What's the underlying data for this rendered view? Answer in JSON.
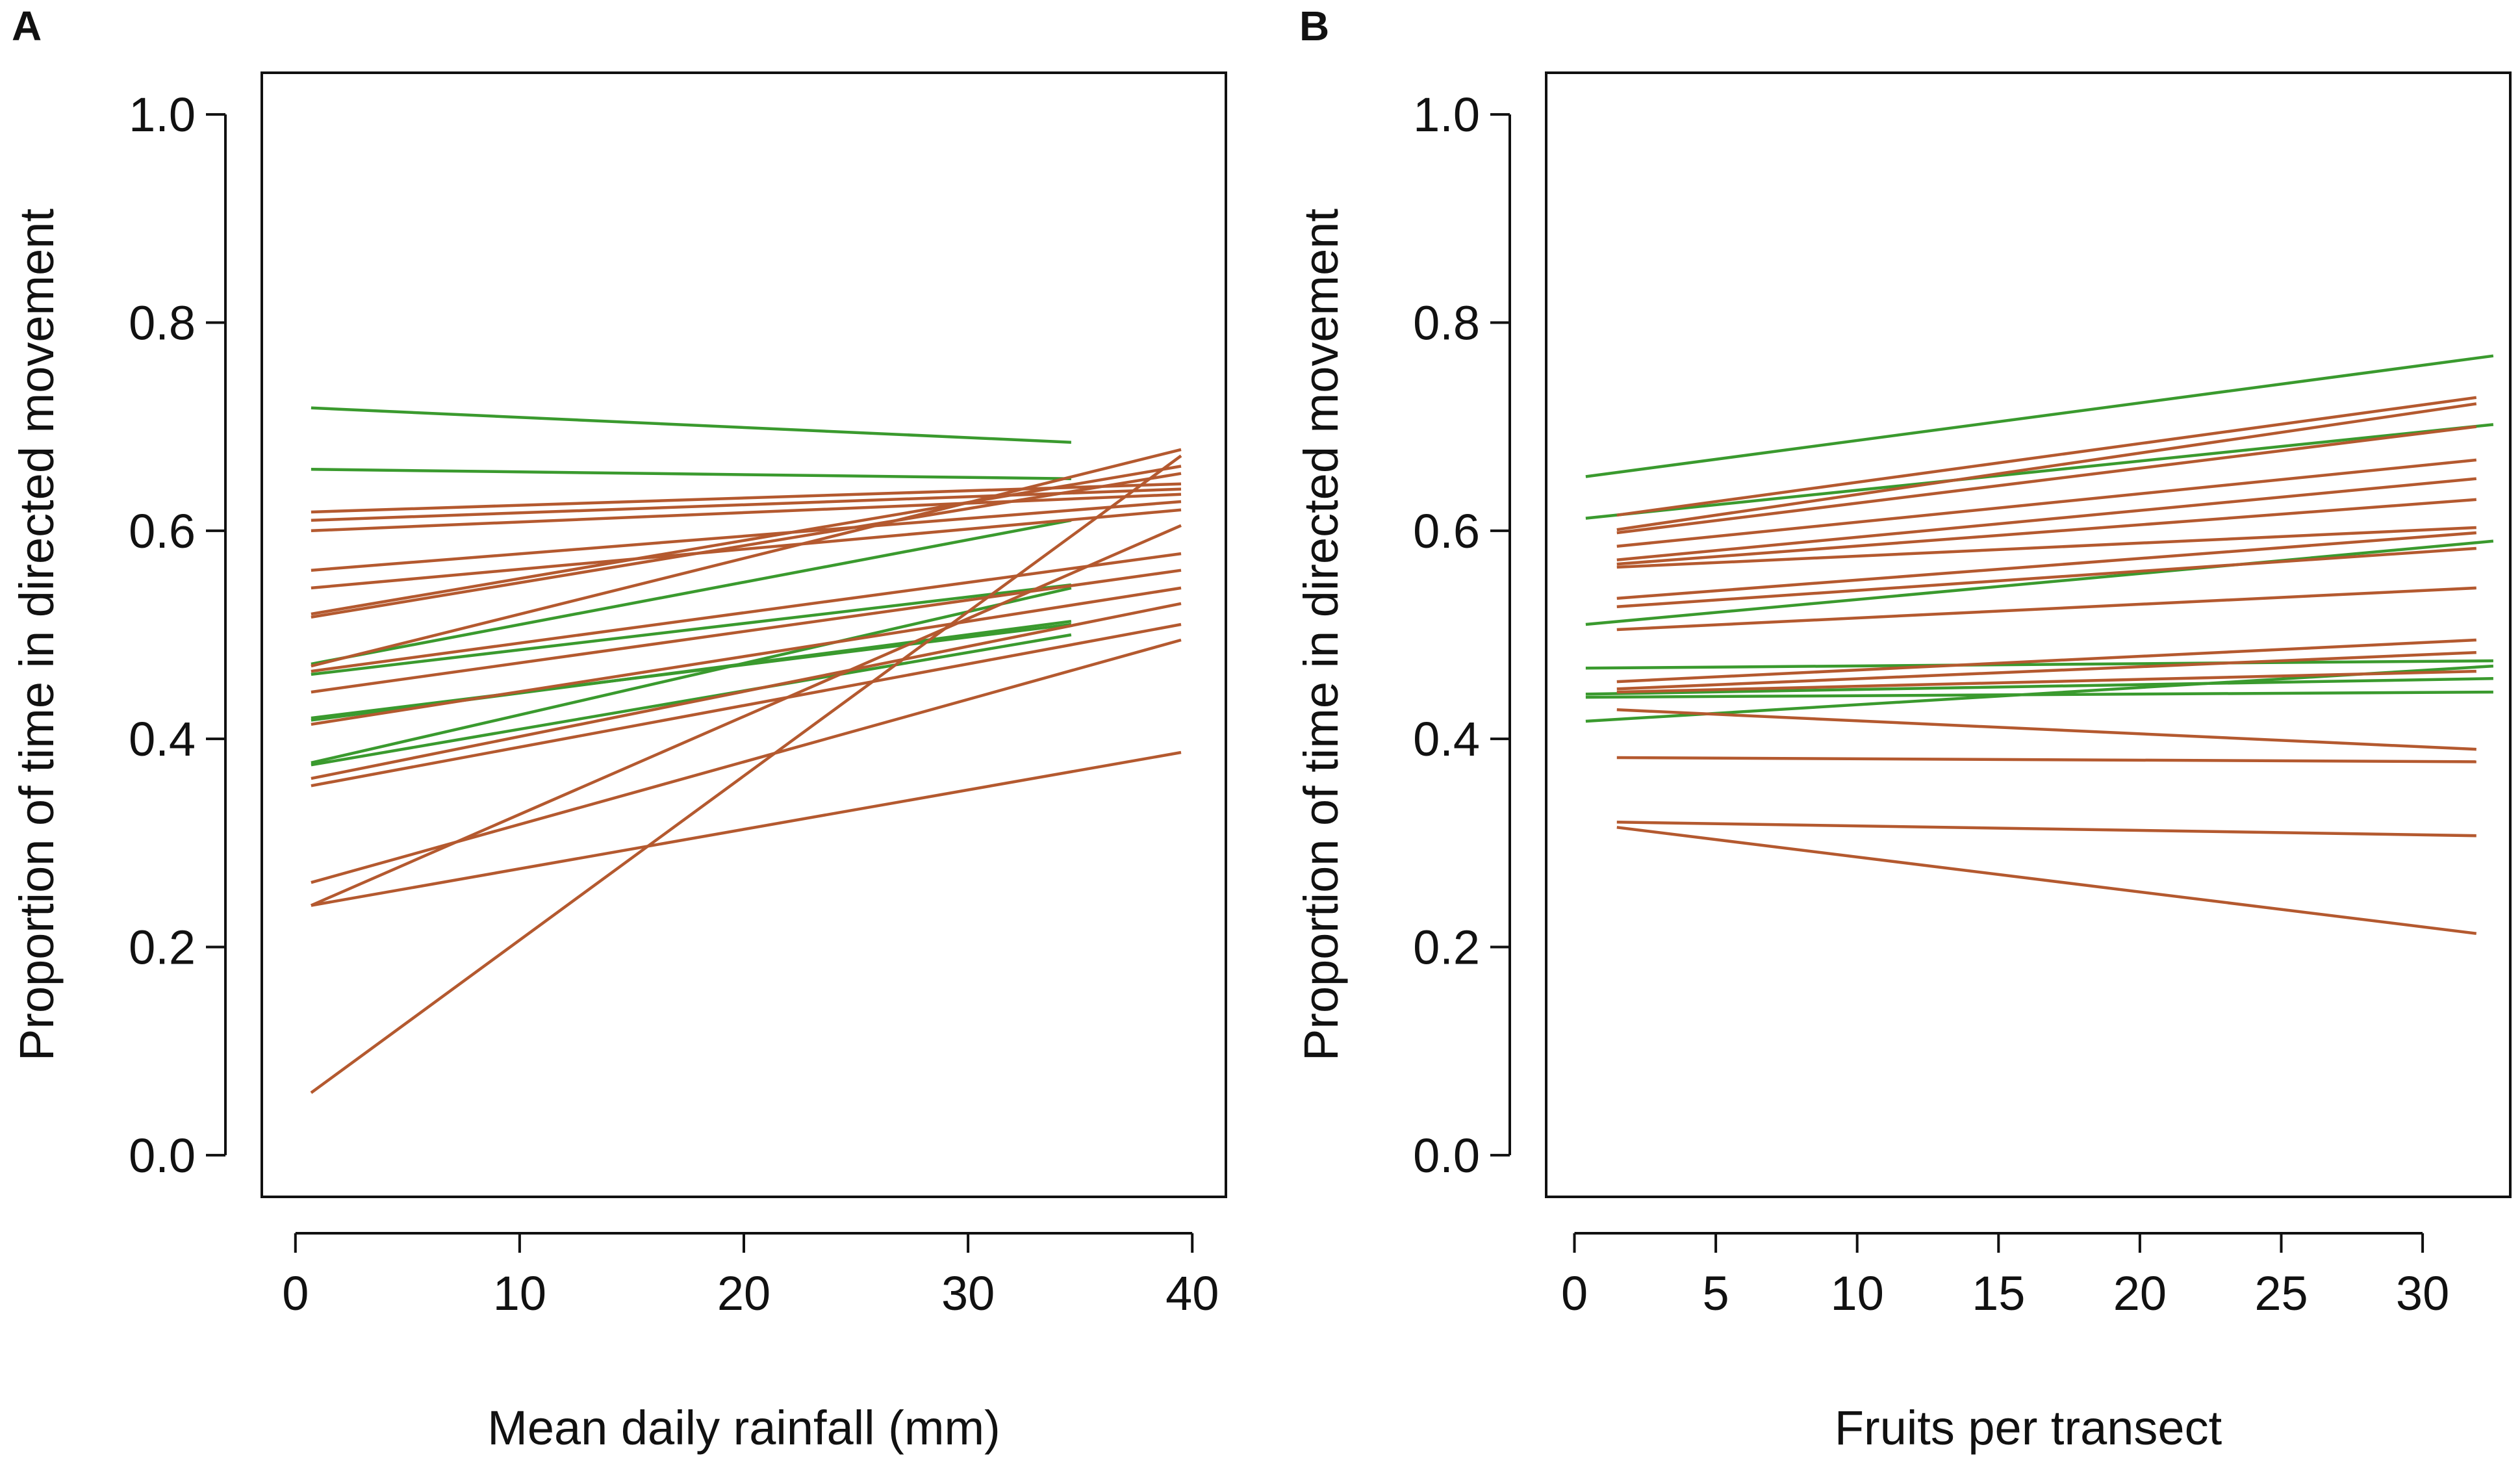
{
  "colors": {
    "brown": "#b4592f",
    "green": "#3a9a2e",
    "axis": "#111111"
  },
  "chart_data": [
    {
      "type": "line",
      "panel": "A",
      "xlabel": "Mean daily rainfall (mm)",
      "ylabel": "Proportion of time in directed movement",
      "xlim": [
        -1.5,
        41.5
      ],
      "ylim": [
        -0.04,
        1.04
      ],
      "xticks": [
        0,
        10,
        20,
        30,
        40
      ],
      "xtick_labels": [
        "0",
        "10",
        "20",
        "30",
        "40"
      ],
      "yticks": [
        0.0,
        0.2,
        0.4,
        0.6,
        0.8,
        1.0
      ],
      "ytick_labels": [
        "0.0",
        "0.2",
        "0.4",
        "0.6",
        "0.8",
        "1.0"
      ],
      "series": [
        {
          "group": "green",
          "x": [
            0.7,
            34.6
          ],
          "y": [
            0.718,
            0.685
          ]
        },
        {
          "group": "green",
          "x": [
            0.7,
            34.6
          ],
          "y": [
            0.659,
            0.65
          ]
        },
        {
          "group": "green",
          "x": [
            0.7,
            34.6
          ],
          "y": [
            0.472,
            0.61
          ]
        },
        {
          "group": "green",
          "x": [
            0.7,
            34.6
          ],
          "y": [
            0.462,
            0.548
          ]
        },
        {
          "group": "green",
          "x": [
            0.7,
            34.6
          ],
          "y": [
            0.42,
            0.51
          ]
        },
        {
          "group": "green",
          "x": [
            0.7,
            34.6
          ],
          "y": [
            0.377,
            0.545
          ]
        },
        {
          "group": "green",
          "x": [
            0.7,
            34.6
          ],
          "y": [
            0.375,
            0.5
          ]
        },
        {
          "group": "green",
          "x": [
            0.7,
            34.6
          ],
          "y": [
            0.418,
            0.513
          ]
        },
        {
          "group": "brown",
          "x": [
            0.7,
            39.5
          ],
          "y": [
            0.618,
            0.645
          ]
        },
        {
          "group": "brown",
          "x": [
            0.7,
            39.5
          ],
          "y": [
            0.61,
            0.64
          ]
        },
        {
          "group": "brown",
          "x": [
            0.7,
            39.5
          ],
          "y": [
            0.6,
            0.635
          ]
        },
        {
          "group": "brown",
          "x": [
            0.7,
            39.5
          ],
          "y": [
            0.562,
            0.628
          ]
        },
        {
          "group": "brown",
          "x": [
            0.7,
            39.5
          ],
          "y": [
            0.545,
            0.62
          ]
        },
        {
          "group": "brown",
          "x": [
            0.7,
            39.5
          ],
          "y": [
            0.52,
            0.662
          ]
        },
        {
          "group": "brown",
          "x": [
            0.7,
            39.5
          ],
          "y": [
            0.517,
            0.655
          ]
        },
        {
          "group": "brown",
          "x": [
            0.7,
            39.5
          ],
          "y": [
            0.47,
            0.678
          ]
        },
        {
          "group": "brown",
          "x": [
            0.7,
            39.5
          ],
          "y": [
            0.465,
            0.578
          ]
        },
        {
          "group": "brown",
          "x": [
            0.7,
            39.5
          ],
          "y": [
            0.445,
            0.562
          ]
        },
        {
          "group": "brown",
          "x": [
            0.7,
            39.5
          ],
          "y": [
            0.414,
            0.545
          ]
        },
        {
          "group": "brown",
          "x": [
            0.7,
            39.5
          ],
          "y": [
            0.362,
            0.53
          ]
        },
        {
          "group": "brown",
          "x": [
            0.7,
            39.5
          ],
          "y": [
            0.355,
            0.51
          ]
        },
        {
          "group": "brown",
          "x": [
            0.7,
            39.5
          ],
          "y": [
            0.262,
            0.495
          ]
        },
        {
          "group": "brown",
          "x": [
            0.7,
            39.5
          ],
          "y": [
            0.24,
            0.605
          ]
        },
        {
          "group": "brown",
          "x": [
            0.7,
            39.5
          ],
          "y": [
            0.24,
            0.387
          ]
        },
        {
          "group": "brown",
          "x": [
            0.7,
            39.5
          ],
          "y": [
            0.06,
            0.672
          ]
        }
      ]
    },
    {
      "type": "line",
      "panel": "B",
      "xlabel": "Fruits per transect",
      "ylabel": "Proportion of time in directed movement",
      "xlim": [
        -1.0,
        33.1
      ],
      "ylim": [
        -0.04,
        1.04
      ],
      "xticks": [
        0,
        5,
        10,
        15,
        20,
        25,
        30
      ],
      "xtick_labels": [
        "0",
        "5",
        "10",
        "15",
        "20",
        "25",
        "30"
      ],
      "yticks": [
        0.0,
        0.2,
        0.4,
        0.6,
        0.8,
        1.0
      ],
      "ytick_labels": [
        "0.0",
        "0.2",
        "0.4",
        "0.6",
        "0.8",
        "1.0"
      ],
      "series": [
        {
          "group": "green",
          "x": [
            0.4,
            32.5
          ],
          "y": [
            0.652,
            0.768
          ]
        },
        {
          "group": "green",
          "x": [
            0.4,
            32.5
          ],
          "y": [
            0.612,
            0.702
          ]
        },
        {
          "group": "green",
          "x": [
            0.4,
            32.5
          ],
          "y": [
            0.51,
            0.59
          ]
        },
        {
          "group": "green",
          "x": [
            0.4,
            32.5
          ],
          "y": [
            0.468,
            0.475
          ]
        },
        {
          "group": "green",
          "x": [
            0.4,
            32.5
          ],
          "y": [
            0.443,
            0.458
          ]
        },
        {
          "group": "green",
          "x": [
            0.4,
            32.5
          ],
          "y": [
            0.44,
            0.445
          ]
        },
        {
          "group": "green",
          "x": [
            0.4,
            32.5
          ],
          "y": [
            0.417,
            0.47
          ]
        },
        {
          "group": "brown",
          "x": [
            1.5,
            31.9
          ],
          "y": [
            0.615,
            0.728
          ]
        },
        {
          "group": "brown",
          "x": [
            1.5,
            31.9
          ],
          "y": [
            0.601,
            0.722
          ]
        },
        {
          "group": "brown",
          "x": [
            1.5,
            31.9
          ],
          "y": [
            0.598,
            0.7
          ]
        },
        {
          "group": "brown",
          "x": [
            1.5,
            31.9
          ],
          "y": [
            0.585,
            0.668
          ]
        },
        {
          "group": "brown",
          "x": [
            1.5,
            31.9
          ],
          "y": [
            0.572,
            0.65
          ]
        },
        {
          "group": "brown",
          "x": [
            1.5,
            31.9
          ],
          "y": [
            0.568,
            0.63
          ]
        },
        {
          "group": "brown",
          "x": [
            1.5,
            31.9
          ],
          "y": [
            0.565,
            0.603
          ]
        },
        {
          "group": "brown",
          "x": [
            1.5,
            31.9
          ],
          "y": [
            0.535,
            0.598
          ]
        },
        {
          "group": "brown",
          "x": [
            1.5,
            31.9
          ],
          "y": [
            0.527,
            0.583
          ]
        },
        {
          "group": "brown",
          "x": [
            1.5,
            31.9
          ],
          "y": [
            0.505,
            0.545
          ]
        },
        {
          "group": "brown",
          "x": [
            1.5,
            31.9
          ],
          "y": [
            0.455,
            0.495
          ]
        },
        {
          "group": "brown",
          "x": [
            1.5,
            31.9
          ],
          "y": [
            0.448,
            0.483
          ]
        },
        {
          "group": "brown",
          "x": [
            1.5,
            31.9
          ],
          "y": [
            0.445,
            0.465
          ]
        },
        {
          "group": "brown",
          "x": [
            1.5,
            31.9
          ],
          "y": [
            0.428,
            0.39
          ]
        },
        {
          "group": "brown",
          "x": [
            1.5,
            31.9
          ],
          "y": [
            0.382,
            0.378
          ]
        },
        {
          "group": "brown",
          "x": [
            1.5,
            31.9
          ],
          "y": [
            0.32,
            0.307
          ]
        },
        {
          "group": "brown",
          "x": [
            1.5,
            31.9
          ],
          "y": [
            0.315,
            0.213
          ]
        }
      ]
    }
  ]
}
